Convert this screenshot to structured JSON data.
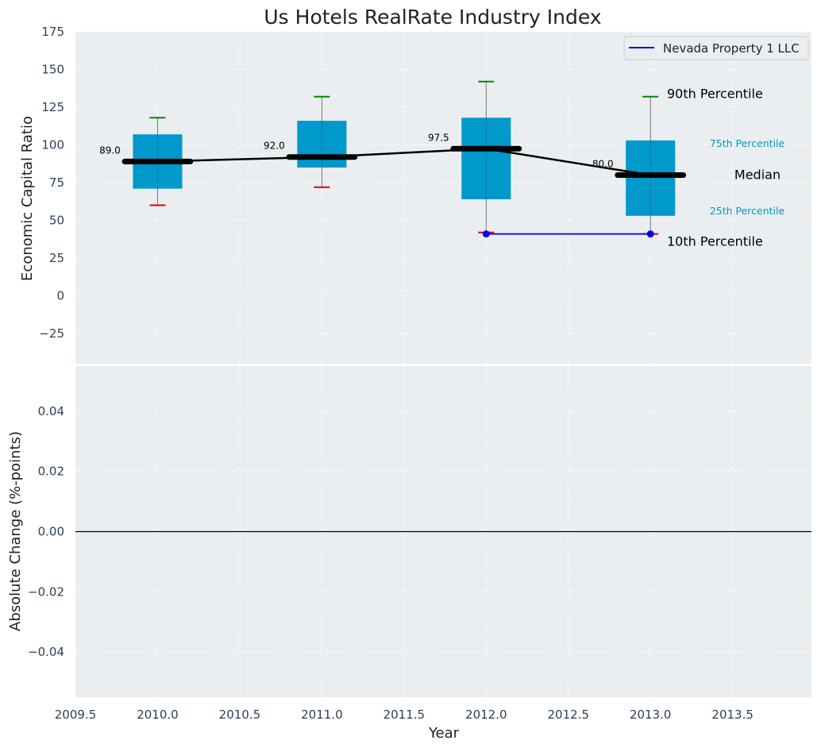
{
  "chart_data": {
    "type": "box",
    "title": "Us Hotels RealRate Industry Index",
    "xlabel": "Year",
    "x_ticks": [
      "2009.5",
      "2010.0",
      "2010.5",
      "2011.0",
      "2011.5",
      "2012.0",
      "2012.5",
      "2013.0",
      "2013.5"
    ],
    "x_tick_values": [
      2009.5,
      2010.0,
      2010.5,
      2011.0,
      2011.5,
      2012.0,
      2012.5,
      2013.0,
      2013.5
    ],
    "xlim": [
      2009.5,
      2013.98
    ],
    "top_panel": {
      "ylabel": "Economic Capital Ratio",
      "ylim": [
        -45,
        175
      ],
      "y_ticks": [
        "175",
        "150",
        "125",
        "100",
        "75",
        "50",
        "25",
        "0",
        "−25"
      ],
      "y_tick_values": [
        175,
        150,
        125,
        100,
        75,
        50,
        25,
        0,
        -25
      ],
      "grid": true,
      "boxes": [
        {
          "x": 2010.0,
          "p10": 60,
          "p25": 71,
          "median": 89.0,
          "p75": 107,
          "p90": 118,
          "median_label": "89.0"
        },
        {
          "x": 2011.0,
          "p10": 72,
          "p25": 85,
          "median": 92.0,
          "p75": 116,
          "p90": 132,
          "median_label": "92.0"
        },
        {
          "x": 2012.0,
          "p10": 42,
          "p25": 64,
          "median": 97.5,
          "p75": 118,
          "p90": 142,
          "median_label": "97.5"
        },
        {
          "x": 2013.0,
          "p10": 41,
          "p25": 53,
          "median": 80.0,
          "p75": 103,
          "p90": 132,
          "median_label": "80.0"
        }
      ],
      "series": [
        {
          "name": "Nevada Property 1 LLC",
          "x": [
            2012.0,
            2013.0
          ],
          "y": [
            41,
            41
          ],
          "color": "#0000ee"
        }
      ],
      "legend": {
        "position": "top-right",
        "entries": [
          "Nevada Property 1 LLC"
        ]
      },
      "annotations": {
        "p90": "90th Percentile",
        "p75": "75th Percentile",
        "median": "Median",
        "p25": "25th Percentile",
        "p10": "10th Percentile"
      }
    },
    "bottom_panel": {
      "ylabel": "Absolute Change (%-points)",
      "ylim": [
        -0.055,
        0.055
      ],
      "y_ticks": [
        "0.04",
        "0.02",
        "0.00",
        "−0.02",
        "−0.04"
      ],
      "y_tick_values": [
        0.04,
        0.02,
        0.0,
        -0.02,
        -0.04
      ],
      "grid": true,
      "reference_line": 0.0
    },
    "colors": {
      "background": "#eaeef0",
      "box_fill": "#0099cc",
      "p90_cap": "#008800",
      "p10_cap": "#dd0000",
      "median": "#000000",
      "series": "#0000ee",
      "annotation_teal": "#0099bb",
      "tick_text": "#2e3f55"
    }
  }
}
